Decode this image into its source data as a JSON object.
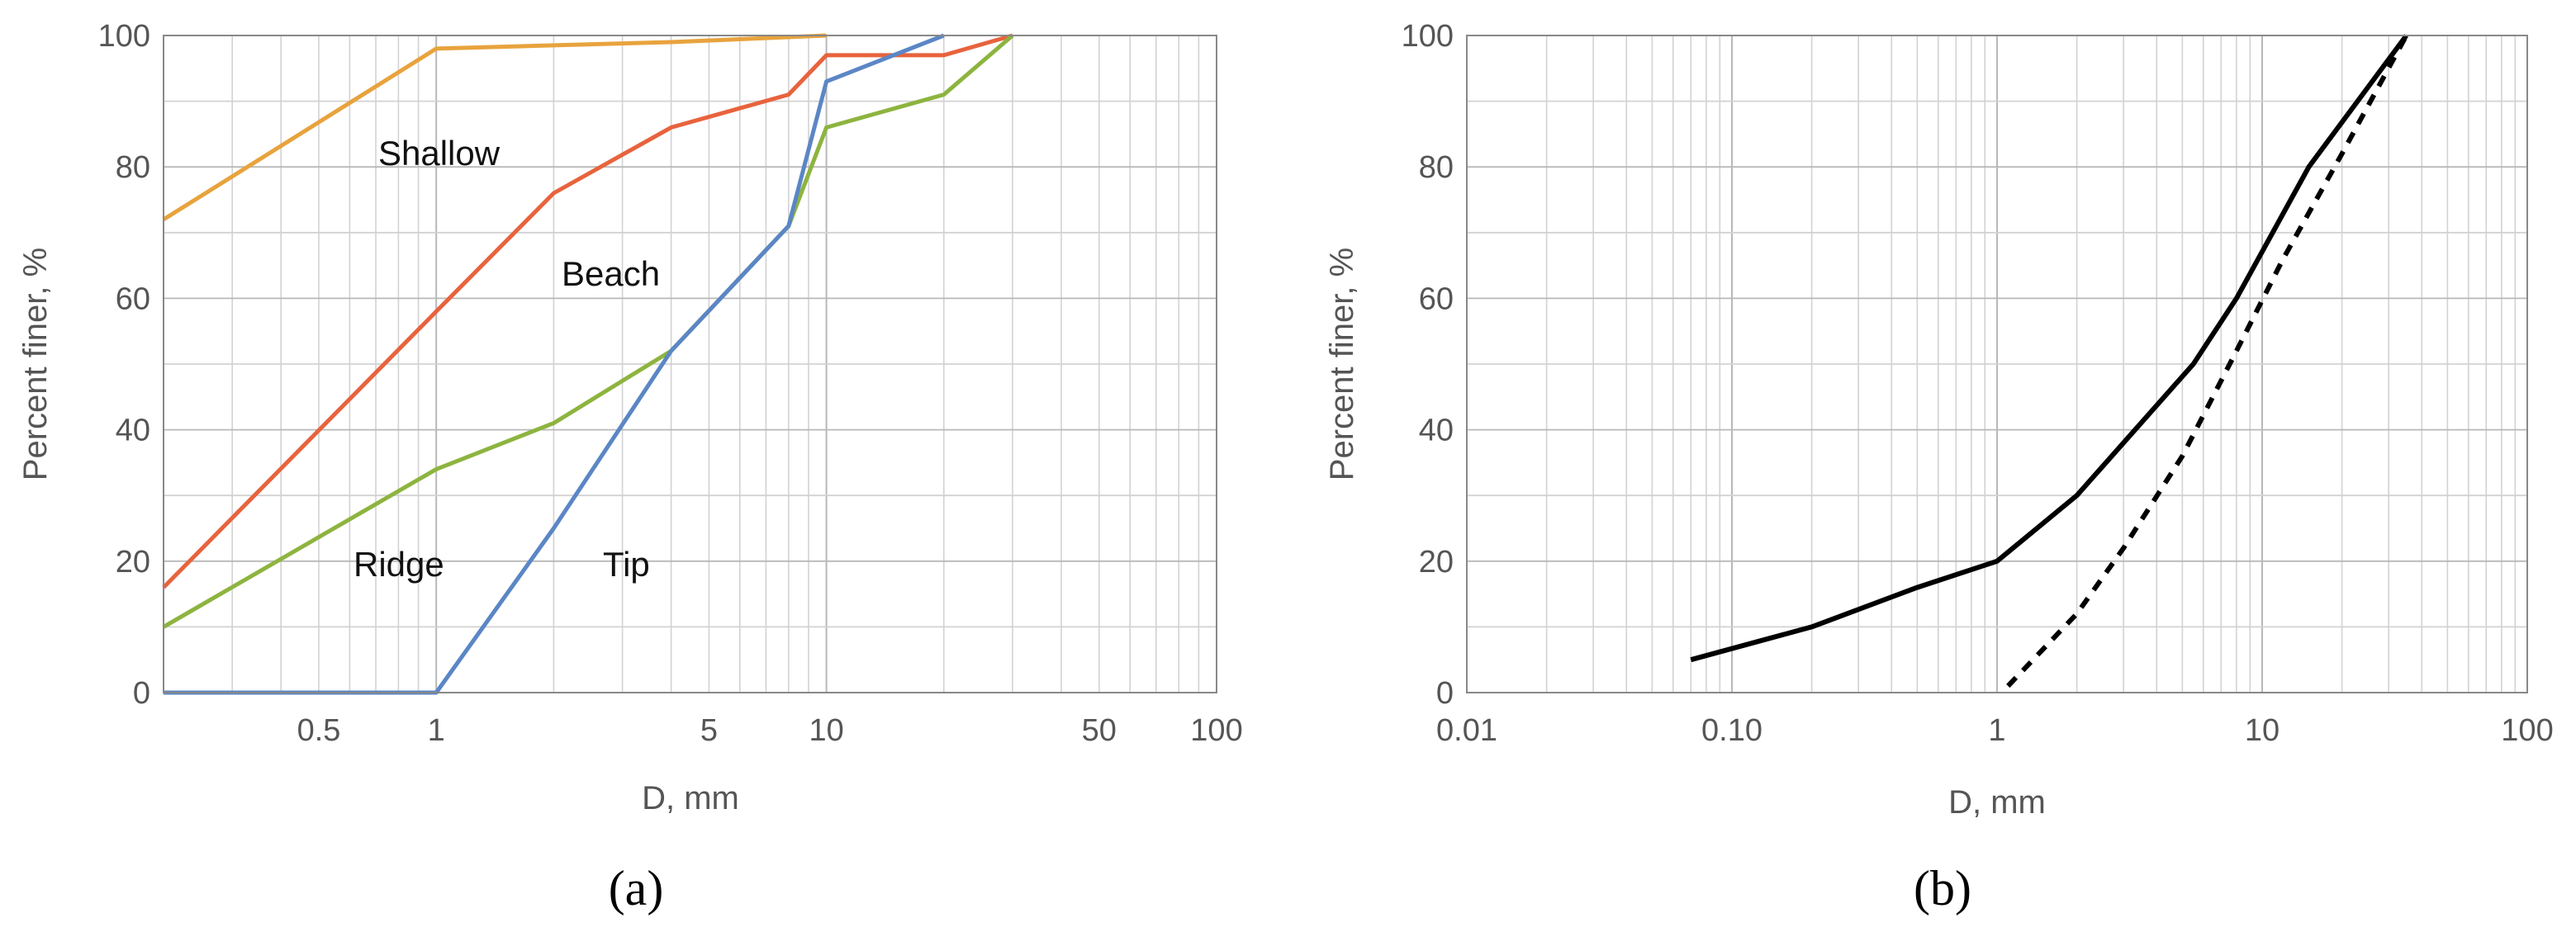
{
  "chart_data": [
    {
      "type": "line",
      "panel_label": "(a)",
      "x_scale": "log",
      "xlabel": "D, mm",
      "ylabel": "Percent finer, %",
      "xlim": [
        0.2,
        100
      ],
      "ylim": [
        0,
        100
      ],
      "x_tick_labels": [
        "0.5",
        "1",
        "5",
        "10",
        "50",
        "100"
      ],
      "y_tick_labels": [
        "0",
        "20",
        "40",
        "60",
        "80",
        "100"
      ],
      "grid": true,
      "colors": {
        "Shallow": "#E8A33D",
        "Beach": "#E8633D",
        "Ridge": "#8DB43F",
        "Tip": "#5B86C5"
      },
      "series": [
        {
          "name": "Shallow",
          "label_text": "Shallow",
          "x": [
            0.2,
            1,
            2,
            4,
            10
          ],
          "y": [
            72,
            98,
            98.5,
            99,
            100
          ]
        },
        {
          "name": "Beach",
          "label_text": "Beach",
          "x": [
            0.2,
            1,
            2,
            4,
            8,
            10,
            20,
            30
          ],
          "y": [
            16,
            58,
            76,
            86,
            91,
            97,
            97,
            100
          ]
        },
        {
          "name": "Ridge",
          "label_text": "Ridge",
          "x": [
            0.2,
            1,
            2,
            4,
            8,
            10,
            20,
            30
          ],
          "y": [
            10,
            34,
            41,
            52,
            71,
            86,
            91,
            100
          ]
        },
        {
          "name": "Tip",
          "label_text": "Tip",
          "x": [
            0.2,
            1,
            2,
            4,
            8,
            10,
            20
          ],
          "y": [
            0,
            0,
            25,
            52,
            71,
            93,
            100
          ]
        }
      ]
    },
    {
      "type": "line",
      "panel_label": "(b)",
      "x_scale": "log",
      "xlabel": "D, mm",
      "ylabel": "Percent finer, %",
      "xlim": [
        0.01,
        100
      ],
      "ylim": [
        0,
        100
      ],
      "x_tick_labels": [
        "0.01",
        "0.10",
        "1",
        "10",
        "100"
      ],
      "y_tick_labels": [
        "0",
        "20",
        "40",
        "60",
        "80",
        "100"
      ],
      "grid": true,
      "colors": {
        "solid": "#000000",
        "dashed": "#000000"
      },
      "series": [
        {
          "style": "solid",
          "x": [
            0.07,
            0.2,
            0.5,
            1,
            2,
            5.5,
            8,
            15,
            35
          ],
          "y": [
            5,
            10,
            16,
            20,
            30,
            50,
            60,
            80,
            100
          ]
        },
        {
          "style": "dashed",
          "x": [
            1.1,
            2,
            3,
            5,
            8,
            12,
            20,
            35
          ],
          "y": [
            1,
            12,
            22,
            36,
            52,
            66,
            82,
            100
          ]
        }
      ]
    }
  ]
}
